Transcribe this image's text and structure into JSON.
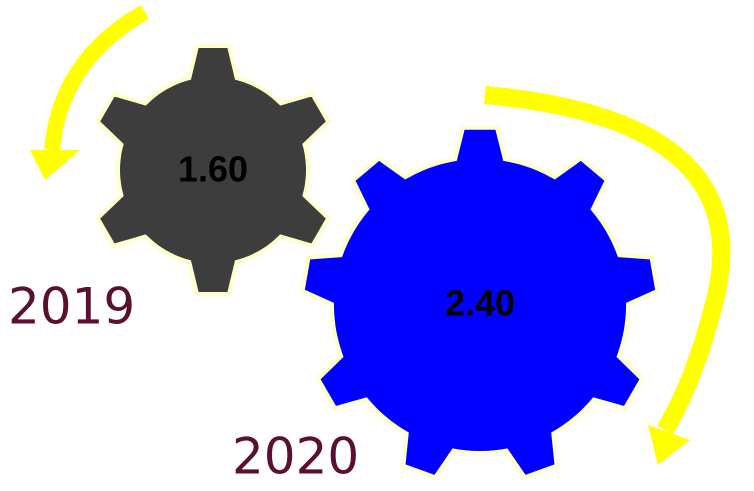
{
  "gears": [
    {
      "label": "2019",
      "value": "1.60"
    },
    {
      "label": "2020",
      "value": "2.40"
    }
  ]
}
